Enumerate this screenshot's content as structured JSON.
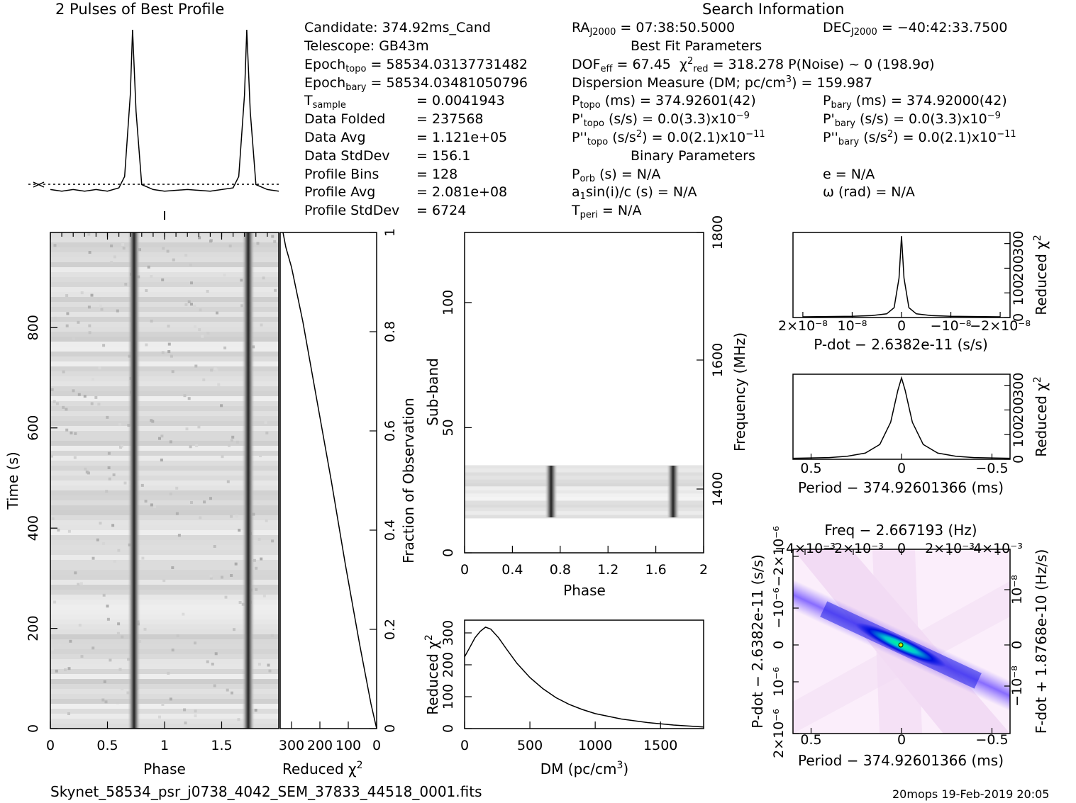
{
  "profile_title": "2 Pulses of Best Profile",
  "search_title": "Search Information",
  "footer": {
    "filename": "Skynet_58534_psr_j0738_4042_SEM_37833_44518_0001.fits",
    "stamp": "20mops 19-Feb-2019 20:05"
  },
  "info": {
    "candidate": "Candidate:  374.92ms_Cand",
    "telescope": "Telescope:  GB43m",
    "epoch_topo_label": "Epoch",
    "epoch_topo_sub": "topo",
    "epoch_topo_val": "= 58534.03137731482",
    "epoch_bary_label": "Epoch",
    "epoch_bary_sub": "bary",
    "epoch_bary_val": "= 58534.03481050796",
    "tsample_label": "T",
    "tsample_sub": "sample",
    "tsample_val": "=  0.0041943",
    "folded_label": "Data Folded",
    "folded_val": "=  237568",
    "avg_label": "Data Avg",
    "avg_val": "=  1.121e+05",
    "std_label": "Data StdDev",
    "std_val": "=  156.1",
    "bins_label": "Profile Bins",
    "bins_val": "=  128",
    "pavg_label": "Profile Avg",
    "pavg_val": "=  2.081e+08",
    "pstd_label": "Profile StdDev",
    "pstd_val": "=  6724"
  },
  "search": {
    "ra_label": "RA",
    "ra_sub": "J2000",
    "ra_val": "= 07:38:50.5000",
    "dec_label": "DEC",
    "dec_sub": "J2000",
    "dec_val": "= −40:42:33.7500",
    "best_fit": "Best Fit Parameters",
    "dof_label": "DOF",
    "dof_sub": "eff",
    "dof_val": "= 67.45",
    "chi_val": "= 318.278  P(Noise) ~ 0   (198.9σ)",
    "dm_line": "Dispersion Measure (DM; pc/cm",
    "dm_val": ") = 159.987",
    "ptopo_label": "P",
    "ptopo_sub": "topo",
    "ptopo_val": "(ms) =  374.92601(42)",
    "pbary_label": "P",
    "pbary_sub": "bary",
    "pbary_val": "(ms) =  374.92000(42)",
    "pdtopo_val": "(s/s) = 0.0(3.3)x10",
    "pdbary_val": "(s/s) = 0.0(3.3)x10",
    "pd_exp": "−9",
    "pddtopo_val": "(s/s",
    "pddtopo_val2": ") = 0.0(2.1)x10",
    "pdd_exp": "−11",
    "binary": "Binary Parameters",
    "porb_label": "P",
    "porb_sub": "orb",
    "porb_val": "(s) = N/A",
    "e_val": "e = N/A",
    "a1_val": "a",
    "a1_rest": "sin(i)/c (s) = N/A",
    "omega_val": "ω (rad) = N/A",
    "tperi_label": "T",
    "tperi_sub": "peri",
    "tperi_val": "= N/A"
  },
  "chart_data": [
    {
      "type": "line",
      "name": "profile",
      "x": [
        0,
        0.1,
        0.2,
        0.3,
        0.4,
        0.5,
        0.6,
        0.65,
        0.7,
        0.72,
        0.75,
        0.8,
        0.9,
        1.0,
        1.2,
        1.4,
        1.6,
        1.65,
        1.7,
        1.72,
        1.75,
        1.8,
        1.9,
        2.0
      ],
      "y": [
        0.02,
        0.01,
        0.02,
        0.01,
        0.02,
        0.01,
        0.03,
        0.1,
        0.6,
        1.0,
        0.5,
        0.05,
        0.02,
        0.01,
        0.02,
        0.01,
        0.03,
        0.1,
        0.6,
        1.0,
        0.5,
        0.05,
        0.02,
        0.01
      ]
    },
    {
      "type": "heatmap",
      "name": "time-phase",
      "xlabel": "Phase",
      "ylabel": "Time (s)",
      "xlim": [
        0,
        2
      ],
      "ylim": [
        0,
        990
      ],
      "xticks": [
        "0",
        "0.5",
        "1",
        "1.5"
      ],
      "yticks": [
        "0",
        "200",
        "400",
        "600",
        "800"
      ],
      "pulse_phases": [
        0.73,
        1.73
      ]
    },
    {
      "type": "line",
      "name": "reduced-chi2-vs-fraction",
      "xlabel": "Reduced χ",
      "ylabel": "Fraction of Observation",
      "xlim": [
        340,
        0
      ],
      "ylim": [
        0,
        1
      ],
      "xticks": [
        "300",
        "200",
        "100",
        "0"
      ],
      "yticks": [
        "0",
        "0.2",
        "0.4",
        "0.6",
        "0.8",
        "1"
      ],
      "x": [
        0,
        20,
        60,
        110,
        160,
        210,
        260,
        300,
        320,
        330
      ],
      "y": [
        0,
        0.05,
        0.17,
        0.33,
        0.5,
        0.66,
        0.82,
        0.93,
        0.97,
        1.0
      ]
    },
    {
      "type": "heatmap",
      "name": "subband-phase",
      "xlabel": "Phase",
      "ylabel": "Sub-band",
      "y2label": "Frequency (MHz)",
      "xlim": [
        0,
        2
      ],
      "ylim": [
        0,
        128
      ],
      "xticks": [
        "0",
        "0.4",
        "0.8",
        "1.2",
        "1.6",
        "2"
      ],
      "yticks": [
        "0",
        "50",
        "100"
      ],
      "y2ticks": [
        "1400",
        "1600",
        "1800"
      ],
      "band_range": [
        14,
        35
      ]
    },
    {
      "type": "line",
      "name": "dm-curve",
      "xlabel": "DM (pc/cm",
      "ylabel": "Reduced χ",
      "xlim": [
        0,
        1830
      ],
      "ylim": [
        0,
        340
      ],
      "xticks": [
        "0",
        "500",
        "1000",
        "1500"
      ],
      "yticks": [
        "0",
        "100",
        "200",
        "300"
      ],
      "x": [
        0,
        40,
        80,
        120,
        160,
        200,
        260,
        320,
        400,
        500,
        600,
        700,
        800,
        900,
        1000,
        1200,
        1400,
        1600,
        1830
      ],
      "y": [
        225,
        255,
        285,
        305,
        318,
        312,
        285,
        250,
        205,
        160,
        125,
        97,
        76,
        60,
        47,
        30,
        19,
        11,
        5
      ]
    },
    {
      "type": "line",
      "name": "pdot-curve",
      "xlabel": "P-dot − 2.6382e-11 (s/s)",
      "ylabel": "Reduced χ",
      "xticks": [
        "2×10⁻⁸",
        "10⁻⁸",
        "0",
        "−10⁻⁸",
        "−2×10⁻⁸"
      ],
      "yticks": [
        "0",
        "100",
        "200",
        "300"
      ],
      "x": [
        -2.0,
        -1.5,
        -1.0,
        -0.6,
        -0.3,
        -0.15,
        -0.05,
        0,
        0.05,
        0.15,
        0.3,
        0.6,
        1.0,
        1.5,
        2.0
      ],
      "y": [
        3,
        4,
        5,
        8,
        15,
        40,
        160,
        330,
        160,
        40,
        15,
        8,
        5,
        4,
        3
      ]
    },
    {
      "type": "line",
      "name": "period-curve",
      "xlabel": "Period − 374.92601366 (ms)",
      "ylabel": "Reduced χ",
      "xticks": [
        "0.5",
        "0",
        "−0.5"
      ],
      "yticks": [
        "0",
        "100",
        "200",
        "300"
      ],
      "x": [
        0.6,
        0.4,
        0.3,
        0.2,
        0.12,
        0.06,
        0.02,
        0,
        -0.02,
        -0.06,
        -0.12,
        -0.2,
        -0.3,
        -0.4,
        -0.6
      ],
      "y": [
        4,
        7,
        12,
        25,
        60,
        150,
        280,
        330,
        280,
        150,
        60,
        25,
        12,
        7,
        4
      ]
    },
    {
      "type": "heatmap",
      "name": "p-pdot-plane",
      "title": "Freq − 2.667193 (Hz)",
      "xlabel": "Period − 374.92601366 (ms)",
      "ylabel": "P-dot − 2.6382e-11 (s/s)",
      "y2label": "F-dot + 1.8768e-10 (Hz/s)",
      "xticks": [
        "0.5",
        "0",
        "−0.5"
      ],
      "x2ticks": [
        "−4×10⁻³",
        "−2×10⁻³",
        "0",
        "2×10⁻³",
        "4×10⁻³"
      ],
      "yticks": [
        "2×10⁻⁶",
        "10⁻⁶",
        "0",
        "−10⁻⁶",
        "−2×10⁻⁶"
      ],
      "y2ticks": [
        "−10⁻⁸",
        "0",
        "10⁻⁸"
      ]
    }
  ]
}
